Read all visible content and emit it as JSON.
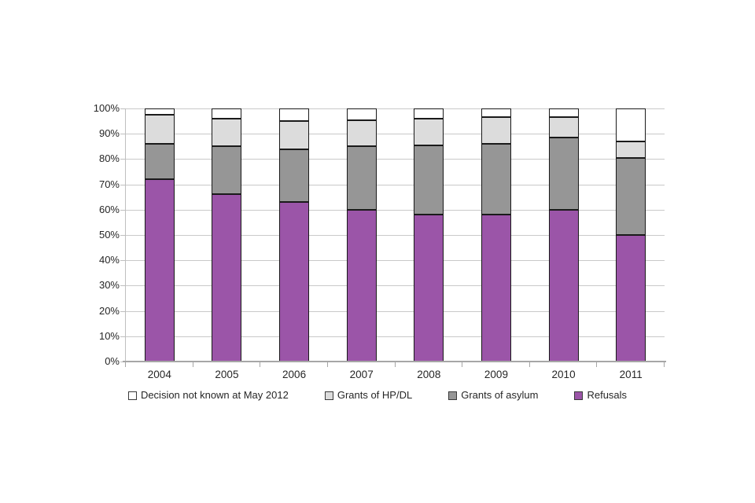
{
  "page": {
    "background": "#FFFFFF"
  },
  "chart_data": {
    "type": "bar",
    "stacked": true,
    "percent_stacked": true,
    "title": "",
    "xlabel": "",
    "ylabel": "",
    "categories": [
      "2004",
      "2005",
      "2006",
      "2007",
      "2008",
      "2009",
      "2010",
      "2011"
    ],
    "series": [
      {
        "name": "Refusals",
        "color": "#9B55A8",
        "values": [
          72,
          66,
          63,
          60,
          58,
          58,
          60,
          50
        ]
      },
      {
        "name": "Grants of asylum",
        "color": "#969696",
        "values": [
          14,
          19,
          21,
          25,
          27.5,
          28,
          28.5,
          30.5
        ]
      },
      {
        "name": "Grants of HP/DL",
        "color": "#DCDCDC",
        "values": [
          11.5,
          11,
          11,
          10.5,
          10.5,
          10.5,
          8,
          6.5
        ]
      },
      {
        "name": "Decision not known at May 2012",
        "color": "#FFFFFF",
        "values": [
          2.5,
          4,
          5,
          4.5,
          4,
          3.5,
          3.5,
          13
        ]
      }
    ],
    "legend": [
      {
        "label": "Decision not known at May 2012",
        "color": "#FFFFFF"
      },
      {
        "label": "Grants of HP/DL",
        "color": "#DCDCDC"
      },
      {
        "label": "Grants of asylum",
        "color": "#969696"
      },
      {
        "label": "Refusals",
        "color": "#9B55A8"
      }
    ],
    "legend_position": "bottom",
    "y_ticks": [
      "0%",
      "10%",
      "20%",
      "30%",
      "40%",
      "50%",
      "60%",
      "70%",
      "80%",
      "90%",
      "100%"
    ],
    "ylim": [
      0,
      100
    ],
    "grid": true
  }
}
